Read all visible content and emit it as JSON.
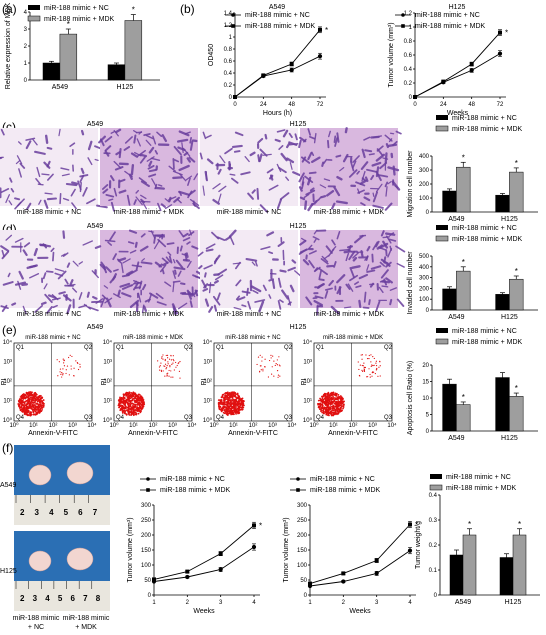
{
  "panels": {
    "a": "(a)",
    "b": "(b)",
    "c": "(c)",
    "d": "(d)",
    "e": "(e)",
    "f": "(f)"
  },
  "legend": {
    "nc": "miR-188 mimic + NC",
    "mdk": "miR-188 mimic + MDK"
  },
  "cells": {
    "a549": "A549",
    "h125": "H125"
  },
  "star": "*",
  "colors": {
    "nc": "#000000",
    "mdk": "#9e9e9e",
    "purple": "#6a3f9e",
    "pink": "#d9b8df"
  },
  "micro_labels": {
    "nc": "miR-188 mimic + NC",
    "mdk": "miR-188 mimic + MDK"
  },
  "flow": {
    "x_label": "Annexin-V-FITC",
    "y_label": "PI",
    "ticks": [
      "10⁰",
      "10¹",
      "10²",
      "10³",
      "10⁴"
    ],
    "quadrants": [
      "Q1",
      "Q2",
      "Q3",
      "Q4"
    ]
  },
  "mouse": {
    "ruler": [
      "2",
      "3",
      "4",
      "5",
      "6",
      "7"
    ],
    "ruler2": [
      "2",
      "3",
      "4",
      "5",
      "6",
      "7",
      "8"
    ]
  },
  "chart_data": [
    {
      "id": "a",
      "type": "bar",
      "ylabel": "Relative expression of MDK",
      "categories": [
        "A549",
        "H125"
      ],
      "ylim": [
        0,
        4
      ],
      "yticks": [
        0,
        1,
        2,
        3,
        4
      ],
      "series": [
        {
          "name": "miR-188 mimic + NC",
          "values": [
            1.0,
            0.9
          ],
          "err": [
            0.1,
            0.1
          ]
        },
        {
          "name": "miR-188 mimic + MDK",
          "values": [
            2.7,
            3.5
          ],
          "err": [
            0.3,
            0.35
          ]
        }
      ],
      "stars": [
        true,
        true
      ]
    },
    {
      "id": "b1",
      "type": "line",
      "title": "A549",
      "xlabel": "Hours (h)",
      "ylabel": "OD450",
      "x": [
        0,
        24,
        48,
        72
      ],
      "ylim": [
        0,
        1.4
      ],
      "yticks": [
        0,
        0.2,
        0.4,
        0.6,
        0.8,
        1.0,
        1.2,
        1.4
      ],
      "series": [
        {
          "name": "miR-188 mimic + NC",
          "values": [
            0,
            0.35,
            0.45,
            0.68
          ]
        },
        {
          "name": "miR-188 mimic + MDK",
          "values": [
            0,
            0.36,
            0.55,
            1.12
          ]
        }
      ],
      "star": true
    },
    {
      "id": "b2",
      "type": "line",
      "title": "H125",
      "xlabel": "Weeks",
      "ylabel": "Tumor volume (mm³)",
      "x": [
        0,
        24,
        48,
        72
      ],
      "ylim": [
        0,
        1.2
      ],
      "yticks": [
        0,
        0.2,
        0.4,
        0.6,
        0.8,
        1.0,
        1.2
      ],
      "series": [
        {
          "name": "miR-188 mimic + NC",
          "values": [
            0,
            0.21,
            0.38,
            0.62
          ]
        },
        {
          "name": "miR-188 mimic + MDK",
          "values": [
            0,
            0.22,
            0.47,
            0.92
          ]
        }
      ],
      "star": true
    },
    {
      "id": "c",
      "type": "bar",
      "ylabel": "Migration cell number",
      "categories": [
        "A549",
        "H125"
      ],
      "ylim": [
        0,
        400
      ],
      "yticks": [
        0,
        100,
        200,
        300,
        400
      ],
      "series": [
        {
          "name": "miR-188 mimic + NC",
          "values": [
            150,
            120
          ],
          "err": [
            15,
            12
          ]
        },
        {
          "name": "miR-188 mimic + MDK",
          "values": [
            320,
            285
          ],
          "err": [
            35,
            30
          ]
        }
      ],
      "stars": [
        true,
        true
      ]
    },
    {
      "id": "d",
      "type": "bar",
      "ylabel": "Invaded cell number",
      "categories": [
        "A549",
        "H125"
      ],
      "ylim": [
        0,
        500
      ],
      "yticks": [
        0,
        100,
        200,
        300,
        400,
        500
      ],
      "series": [
        {
          "name": "miR-188 mimic + NC",
          "values": [
            195,
            145
          ],
          "err": [
            20,
            15
          ]
        },
        {
          "name": "miR-188 mimic + MDK",
          "values": [
            360,
            285
          ],
          "err": [
            40,
            30
          ]
        }
      ],
      "stars": [
        true,
        true
      ]
    },
    {
      "id": "e",
      "type": "bar",
      "ylabel": "Apoptosis cell Ratio (%)",
      "categories": [
        "A549",
        "H125"
      ],
      "ylim": [
        0,
        20
      ],
      "yticks": [
        0,
        5,
        10,
        15,
        20
      ],
      "series": [
        {
          "name": "miR-188 mimic + NC",
          "values": [
            14.2,
            16.2
          ],
          "err": [
            1.5,
            1.5
          ]
        },
        {
          "name": "miR-188 mimic + MDK",
          "values": [
            8.0,
            10.5
          ],
          "err": [
            0.8,
            1.0
          ]
        }
      ],
      "stars": [
        true,
        true
      ]
    },
    {
      "id": "f1",
      "type": "line",
      "xlabel": "Weeks",
      "ylabel": "Tumor volume (mm³)",
      "x": [
        1,
        2,
        3,
        4
      ],
      "ylim": [
        0,
        300
      ],
      "yticks": [
        0,
        50,
        100,
        150,
        200,
        250,
        300
      ],
      "series": [
        {
          "name": "miR-188 mimic + NC",
          "values": [
            45,
            60,
            85,
            160
          ]
        },
        {
          "name": "miR-188 mimic + MDK",
          "values": [
            52,
            78,
            138,
            232
          ]
        }
      ],
      "star": true
    },
    {
      "id": "f2",
      "type": "line",
      "xlabel": "Weeks",
      "ylabel": "Tumor volume (mm³)",
      "x": [
        1,
        2,
        3,
        4
      ],
      "ylim": [
        0,
        300
      ],
      "yticks": [
        0,
        50,
        100,
        150,
        200,
        250,
        300
      ],
      "series": [
        {
          "name": "miR-188 mimic + NC",
          "values": [
            30,
            45,
            72,
            148
          ]
        },
        {
          "name": "miR-188 mimic + MDK",
          "values": [
            38,
            72,
            115,
            235
          ]
        }
      ],
      "star": true
    },
    {
      "id": "f3",
      "type": "bar",
      "ylabel": "Tumor weight/g",
      "categories": [
        "A549",
        "H125"
      ],
      "ylim": [
        0,
        0.4
      ],
      "yticks": [
        0,
        0.1,
        0.2,
        0.3,
        0.4
      ],
      "series": [
        {
          "name": "miR-188 mimic + NC",
          "values": [
            0.16,
            0.15
          ],
          "err": [
            0.02,
            0.015
          ]
        },
        {
          "name": "miR-188 mimic + MDK",
          "values": [
            0.24,
            0.24
          ],
          "err": [
            0.025,
            0.025
          ]
        }
      ],
      "stars": [
        true,
        true
      ]
    }
  ]
}
